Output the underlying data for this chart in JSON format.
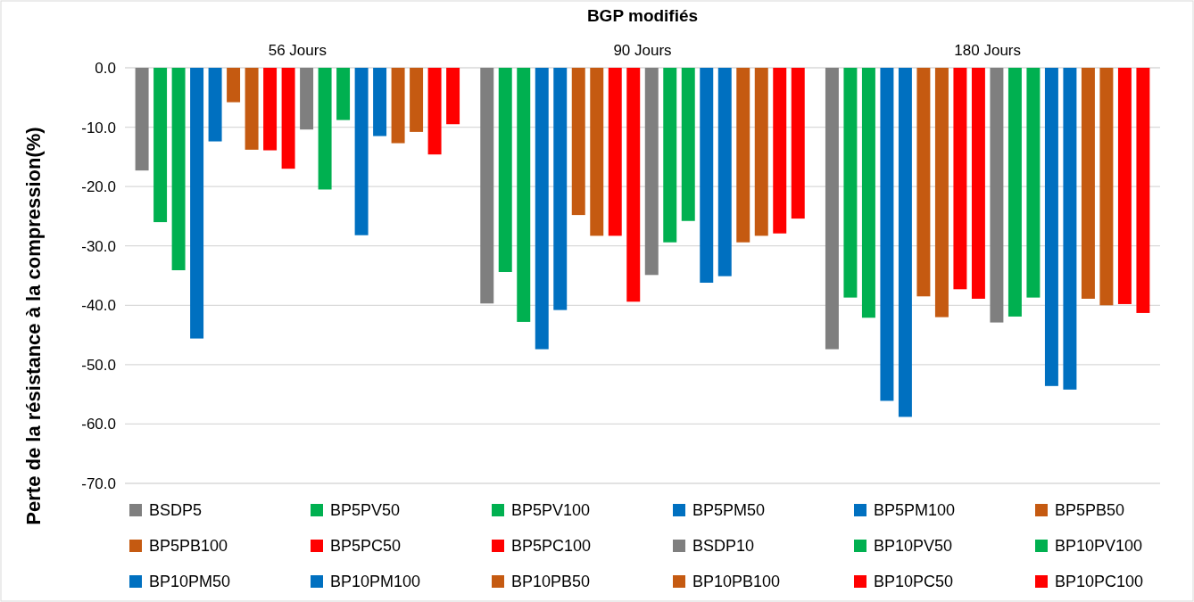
{
  "chart_data": {
    "type": "bar",
    "title": "BGP modifiés",
    "ylabel": "Perte de la résistance à la compression(%)",
    "categories": [
      "56 Jours",
      "90 Jours",
      "180 Jours"
    ],
    "series": [
      {
        "name": "BSDP5",
        "color": "#7f7f7f",
        "values": [
          -17.3,
          -39.7,
          -47.4
        ]
      },
      {
        "name": "BP5PV50",
        "color": "#00b050",
        "values": [
          -26.0,
          -34.4,
          -38.7
        ]
      },
      {
        "name": "BP5PV100",
        "color": "#00b050",
        "values": [
          -34.1,
          -42.8,
          -42.1
        ]
      },
      {
        "name": "BP5PM50",
        "color": "#0070c0",
        "values": [
          -45.6,
          -47.4,
          -56.1
        ]
      },
      {
        "name": "BP5PM100",
        "color": "#0070c0",
        "values": [
          -12.4,
          -40.8,
          -58.8
        ]
      },
      {
        "name": "BP5PB50",
        "color": "#c55a11",
        "values": [
          -5.8,
          -24.8,
          -38.5
        ]
      },
      {
        "name": "BP5PB100",
        "color": "#c55a11",
        "values": [
          -13.8,
          -28.3,
          -42.0
        ]
      },
      {
        "name": "BP5PC50",
        "color": "#ff0000",
        "values": [
          -13.9,
          -28.3,
          -37.3
        ]
      },
      {
        "name": "BP5PC100",
        "color": "#ff0000",
        "values": [
          -17.0,
          -39.4,
          -38.9
        ]
      },
      {
        "name": "BSDP10",
        "color": "#7f7f7f",
        "values": [
          -10.4,
          -34.9,
          -42.9
        ]
      },
      {
        "name": "BP10PV50",
        "color": "#00b050",
        "values": [
          -20.5,
          -29.4,
          -41.9
        ]
      },
      {
        "name": "BP10PV100",
        "color": "#00b050",
        "values": [
          -8.8,
          -25.8,
          -38.7
        ]
      },
      {
        "name": "BP10PM50",
        "color": "#0070c0",
        "values": [
          -28.2,
          -36.2,
          -53.6
        ]
      },
      {
        "name": "BP10PM100",
        "color": "#0070c0",
        "values": [
          -11.5,
          -35.1,
          -54.2
        ]
      },
      {
        "name": "BP10PB50",
        "color": "#c55a11",
        "values": [
          -12.7,
          -29.4,
          -38.9
        ]
      },
      {
        "name": "BP10PB100",
        "color": "#c55a11",
        "values": [
          -10.8,
          -28.3,
          -40.0
        ]
      },
      {
        "name": "BP10PC50",
        "color": "#ff0000",
        "values": [
          -14.6,
          -27.9,
          -39.8
        ]
      },
      {
        "name": "BP10PC100",
        "color": "#ff0000",
        "values": [
          -9.5,
          -25.4,
          -41.3
        ]
      }
    ],
    "ylim": [
      -70,
      0
    ],
    "yticks": [
      {
        "value": 0,
        "label": "0.0"
      },
      {
        "value": -10,
        "label": "-10.0"
      },
      {
        "value": -20,
        "label": "-20.0"
      },
      {
        "value": -30,
        "label": "-30.0"
      },
      {
        "value": -40,
        "label": "-40.0"
      },
      {
        "value": -50,
        "label": "-50.0"
      },
      {
        "value": -60,
        "label": "-60.0"
      },
      {
        "value": -70,
        "label": "-70.0"
      }
    ],
    "grid": "y",
    "legend": "bottom"
  }
}
